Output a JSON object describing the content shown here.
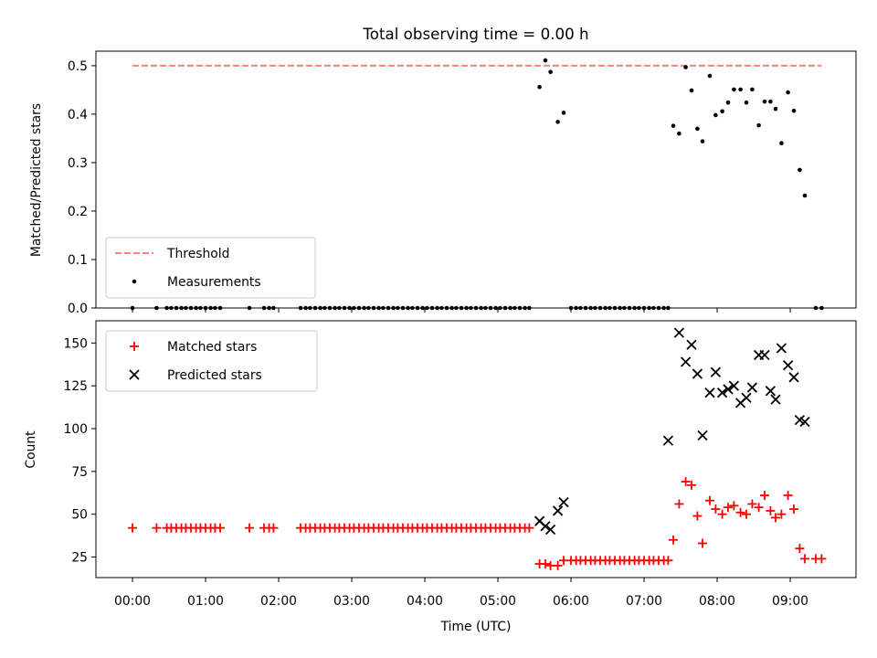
{
  "colors": {
    "threshold": "#ff7f7f",
    "measurements": "#000000",
    "matched": "#ff0000",
    "predicted": "#000000"
  },
  "chart_data": [
    {
      "type": "scatter",
      "title": "Total observing time = 0.00 h",
      "xlabel": "",
      "ylabel": "Matched/Predicted stars",
      "xlim": [
        -0.5,
        9.9
      ],
      "ylim": [
        0,
        0.53
      ],
      "yticks": [
        0.0,
        0.1,
        0.2,
        0.3,
        0.4,
        0.5
      ],
      "ytick_labels": [
        "0.0",
        "0.1",
        "0.2",
        "0.3",
        "0.4",
        "0.5"
      ],
      "legend_position": "lower-left",
      "threshold": {
        "name": "Threshold",
        "y": 0.5,
        "x": [
          0,
          9.43
        ]
      },
      "series": [
        {
          "name": "Measurements",
          "marker": "dot",
          "x": [
            0,
            0.33,
            0.47,
            0.53,
            0.6,
            0.67,
            0.73,
            0.8,
            0.87,
            0.93,
            1.0,
            1.07,
            1.13,
            1.2,
            1.6,
            1.8,
            1.87,
            1.93,
            2.3,
            2.37,
            2.43,
            2.5,
            2.57,
            2.63,
            2.7,
            2.77,
            2.83,
            2.9,
            2.97,
            3.03,
            3.1,
            3.17,
            3.23,
            3.3,
            3.37,
            3.43,
            3.5,
            3.57,
            3.63,
            3.7,
            3.77,
            3.83,
            3.9,
            3.97,
            4.03,
            4.1,
            4.17,
            4.23,
            4.3,
            4.37,
            4.43,
            4.5,
            4.57,
            4.63,
            4.7,
            4.77,
            4.83,
            4.9,
            4.97,
            5.03,
            5.1,
            5.17,
            5.23,
            5.3,
            5.37,
            5.43,
            5.57,
            5.65,
            5.72,
            5.82,
            5.9,
            6.0,
            6.07,
            6.13,
            6.2,
            6.27,
            6.33,
            6.4,
            6.47,
            6.53,
            6.6,
            6.67,
            6.73,
            6.8,
            6.87,
            6.93,
            7.0,
            7.07,
            7.13,
            7.2,
            7.27,
            7.33,
            7.4,
            7.48,
            7.57,
            7.65,
            7.73,
            7.8,
            7.9,
            7.98,
            8.07,
            8.15,
            8.23,
            8.32,
            8.4,
            8.48,
            8.57,
            8.65,
            8.73,
            8.8,
            8.88,
            8.97,
            9.05,
            9.13,
            9.2,
            9.35,
            9.43
          ],
          "y": [
            0,
            0,
            0,
            0,
            0,
            0,
            0,
            0,
            0,
            0,
            0,
            0,
            0,
            0,
            0,
            0,
            0,
            0,
            0,
            0,
            0,
            0,
            0,
            0,
            0,
            0,
            0,
            0,
            0,
            0,
            0,
            0,
            0,
            0,
            0,
            0,
            0,
            0,
            0,
            0,
            0,
            0,
            0,
            0,
            0,
            0,
            0,
            0,
            0,
            0,
            0,
            0,
            0,
            0,
            0,
            0,
            0,
            0,
            0,
            0,
            0,
            0,
            0,
            0,
            0,
            0,
            0.456,
            0.511,
            0.487,
            0.384,
            0.403,
            0,
            0,
            0,
            0,
            0,
            0,
            0,
            0,
            0,
            0,
            0,
            0,
            0,
            0,
            0,
            0,
            0,
            0,
            0,
            0,
            0,
            0.376,
            0.36,
            0.497,
            0.449,
            0.37,
            0.344,
            0.479,
            0.398,
            0.406,
            0.424,
            0.451,
            0.451,
            0.424,
            0.451,
            0.377,
            0.426,
            0.426,
            0.411,
            0.34,
            0.445,
            0.407,
            0.285,
            0.232,
            0,
            0
          ]
        }
      ]
    },
    {
      "type": "scatter",
      "title": "",
      "xlabel": "Time (UTC)",
      "ylabel": "Count",
      "xlim": [
        -0.5,
        9.9
      ],
      "ylim": [
        13,
        163
      ],
      "yticks": [
        25,
        50,
        75,
        100,
        125,
        150
      ],
      "ytick_labels": [
        "25",
        "50",
        "75",
        "100",
        "125",
        "150"
      ],
      "xticks": [
        0,
        1,
        2,
        3,
        4,
        5,
        6,
        7,
        8,
        9
      ],
      "xtick_labels": [
        "00:00",
        "01:00",
        "02:00",
        "03:00",
        "04:00",
        "05:00",
        "06:00",
        "07:00",
        "08:00",
        "09:00"
      ],
      "legend_position": "upper-left",
      "series": [
        {
          "name": "Matched stars",
          "marker": "plus",
          "x": [
            0,
            0.33,
            0.47,
            0.53,
            0.6,
            0.67,
            0.73,
            0.8,
            0.87,
            0.93,
            1.0,
            1.07,
            1.13,
            1.2,
            1.6,
            1.8,
            1.87,
            1.93,
            2.3,
            2.37,
            2.43,
            2.5,
            2.57,
            2.63,
            2.7,
            2.77,
            2.83,
            2.9,
            2.97,
            3.03,
            3.1,
            3.17,
            3.23,
            3.3,
            3.37,
            3.43,
            3.5,
            3.57,
            3.63,
            3.7,
            3.77,
            3.83,
            3.9,
            3.97,
            4.03,
            4.1,
            4.17,
            4.23,
            4.3,
            4.37,
            4.43,
            4.5,
            4.57,
            4.63,
            4.7,
            4.77,
            4.83,
            4.9,
            4.97,
            5.03,
            5.1,
            5.17,
            5.23,
            5.3,
            5.37,
            5.43,
            5.57,
            5.65,
            5.72,
            5.82,
            5.9,
            6.0,
            6.07,
            6.13,
            6.2,
            6.27,
            6.33,
            6.4,
            6.47,
            6.53,
            6.6,
            6.67,
            6.73,
            6.8,
            6.87,
            6.93,
            7.0,
            7.07,
            7.13,
            7.2,
            7.27,
            7.33,
            7.4,
            7.48,
            7.57,
            7.65,
            7.73,
            7.8,
            7.9,
            7.98,
            8.07,
            8.15,
            8.23,
            8.32,
            8.4,
            8.48,
            8.57,
            8.65,
            8.73,
            8.8,
            8.88,
            8.97,
            9.05,
            9.13,
            9.2,
            9.35,
            9.43
          ],
          "y": [
            42,
            42,
            42,
            42,
            42,
            42,
            42,
            42,
            42,
            42,
            42,
            42,
            42,
            42,
            42,
            42,
            42,
            42,
            42,
            42,
            42,
            42,
            42,
            42,
            42,
            42,
            42,
            42,
            42,
            42,
            42,
            42,
            42,
            42,
            42,
            42,
            42,
            42,
            42,
            42,
            42,
            42,
            42,
            42,
            42,
            42,
            42,
            42,
            42,
            42,
            42,
            42,
            42,
            42,
            42,
            42,
            42,
            42,
            42,
            42,
            42,
            42,
            42,
            42,
            42,
            42,
            21,
            21,
            20,
            20,
            23,
            23,
            23,
            23,
            23,
            23,
            23,
            23,
            23,
            23,
            23,
            23,
            23,
            23,
            23,
            23,
            23,
            23,
            23,
            23,
            23,
            23,
            35,
            56,
            69,
            67,
            49,
            33,
            58,
            53,
            50,
            54,
            55,
            51,
            50,
            56,
            54,
            61,
            52,
            48,
            50,
            61,
            53,
            30,
            24,
            24,
            24
          ]
        },
        {
          "name": "Predicted stars",
          "marker": "x",
          "x": [
            5.57,
            5.65,
            5.72,
            5.82,
            5.9,
            7.33,
            7.48,
            7.57,
            7.65,
            7.73,
            7.8,
            7.9,
            7.98,
            8.07,
            8.15,
            8.23,
            8.32,
            8.4,
            8.48,
            8.57,
            8.65,
            8.73,
            8.8,
            8.88,
            8.97,
            9.05,
            9.13,
            9.2
          ],
          "y": [
            46,
            43,
            41,
            52,
            57,
            93,
            156,
            139,
            149,
            132,
            96,
            121,
            133,
            121,
            123,
            125,
            115,
            118,
            124,
            143,
            143,
            122,
            117,
            147,
            137,
            130,
            105,
            104
          ]
        }
      ]
    }
  ]
}
